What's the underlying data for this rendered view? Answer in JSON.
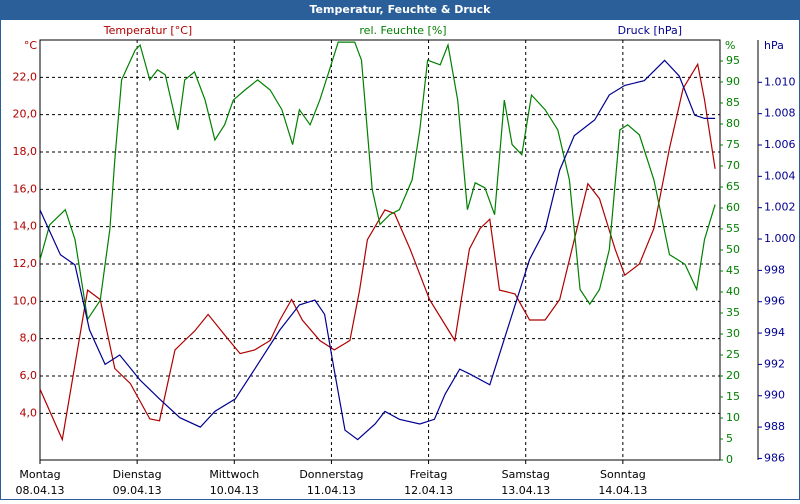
{
  "chart_data": {
    "type": "line",
    "title": "Temperatur, Feuchte & Druck",
    "xlim": [
      0,
      7
    ],
    "xticks": [
      {
        "value": 0,
        "label": "Montag"
      },
      {
        "value": 1,
        "label": "Dienstag"
      },
      {
        "value": 2,
        "label": "Mittwoch"
      },
      {
        "value": 3,
        "label": "Donnerstag"
      },
      {
        "value": 4,
        "label": "Freitag"
      },
      {
        "value": 5,
        "label": "Samstag"
      },
      {
        "value": 6,
        "label": "Sonntag"
      }
    ],
    "xtick_dates": [
      "08.04.13",
      "09.04.13",
      "10.04.13",
      "11.04.13",
      "12.04.13",
      "13.04.13",
      "14.04.13"
    ],
    "ylabel": "°C",
    "ylim": [
      1.5,
      24.0
    ],
    "yticks": [
      {
        "value": 4,
        "label": "4,0"
      },
      {
        "value": 6,
        "label": "6,0"
      },
      {
        "value": 8,
        "label": "8,0"
      },
      {
        "value": 10,
        "label": "10,0"
      },
      {
        "value": 12,
        "label": "12,0"
      },
      {
        "value": 14,
        "label": "14,0"
      },
      {
        "value": 16,
        "label": "16,0"
      },
      {
        "value": 18,
        "label": "18,0"
      },
      {
        "value": 20,
        "label": "20,0"
      },
      {
        "value": 22,
        "label": "22,0"
      }
    ],
    "y3label": "%",
    "y3lim": [
      0,
      100
    ],
    "y3ticks": [
      0,
      5,
      10,
      15,
      20,
      25,
      30,
      35,
      40,
      45,
      50,
      55,
      60,
      65,
      70,
      75,
      80,
      85,
      90,
      95
    ],
    "y2label": "hPa",
    "y2lim": [
      985.9,
      1012.7
    ],
    "y2ticks": [
      986,
      988,
      990,
      992,
      994,
      996,
      998,
      {
        "value": 1000,
        "label": "1.000"
      },
      {
        "value": 1002,
        "label": "1.002"
      },
      {
        "value": 1004,
        "label": "1.004"
      },
      {
        "value": 1006,
        "label": "1.006"
      },
      {
        "value": 1008,
        "label": "1.008"
      },
      {
        "value": 1010,
        "label": "1.010"
      }
    ],
    "grid": true,
    "series": [
      {
        "name": "Temperatur [°C]",
        "color": "#b00000",
        "axis": "y",
        "x": [
          0,
          0.23,
          0.49,
          0.62,
          0.77,
          0.93,
          1.13,
          1.23,
          1.39,
          1.49,
          1.59,
          1.73,
          1.9,
          2.06,
          2.21,
          2.37,
          2.47,
          2.59,
          2.7,
          2.88,
          3.03,
          3.19,
          3.29,
          3.37,
          3.55,
          3.65,
          3.81,
          4.01,
          4.27,
          4.42,
          4.53,
          4.63,
          4.73,
          4.89,
          5.04,
          5.2,
          5.35,
          5.5,
          5.64,
          5.76,
          5.92,
          6.02,
          6.17,
          6.32,
          6.48,
          6.62,
          6.77,
          6.84,
          6.95
        ],
        "values": [
          5.3,
          2.6,
          10.6,
          10.1,
          6.4,
          5.6,
          3.7,
          3.6,
          7.4,
          7.9,
          8.4,
          9.3,
          8.2,
          7.2,
          7.4,
          7.9,
          9.0,
          10.1,
          9.0,
          7.9,
          7.4,
          7.9,
          10.6,
          13.3,
          14.9,
          14.7,
          12.8,
          10.1,
          7.9,
          12.8,
          13.9,
          14.4,
          10.6,
          10.4,
          9.0,
          9.0,
          10.1,
          13.3,
          16.3,
          15.5,
          12.8,
          11.4,
          12.0,
          13.9,
          18.2,
          21.4,
          22.7,
          20.8,
          17.1
        ]
      },
      {
        "name": "rel. Feuchte [%]",
        "color": "#008000",
        "axis": "y3",
        "x": [
          0,
          0.1,
          0.26,
          0.36,
          0.49,
          0.62,
          0.72,
          0.77,
          0.84,
          0.98,
          1.03,
          1.13,
          1.21,
          1.29,
          1.42,
          1.49,
          1.59,
          1.7,
          1.8,
          1.9,
          1.99,
          2.11,
          2.24,
          2.37,
          2.49,
          2.6,
          2.67,
          2.78,
          2.88,
          2.98,
          3.07,
          3.24,
          3.31,
          3.42,
          3.5,
          3.6,
          3.7,
          3.83,
          3.91,
          3.99,
          4.12,
          4.2,
          4.3,
          4.4,
          4.48,
          4.58,
          4.68,
          4.78,
          4.86,
          4.96,
          5.06,
          5.2,
          5.33,
          5.45,
          5.56,
          5.66,
          5.76,
          5.86,
          5.97,
          6.05,
          6.17,
          6.32,
          6.48,
          6.64,
          6.76,
          6.84,
          6.95
        ],
        "values": [
          47.7,
          56,
          59.6,
          52.5,
          33.5,
          38,
          55,
          71.5,
          90.5,
          97.6,
          98.8,
          90.5,
          92.9,
          91.7,
          78.6,
          90.5,
          92.4,
          85.7,
          76.2,
          79.8,
          85.7,
          88.1,
          90.5,
          88.1,
          83.4,
          75.1,
          83.4,
          79.8,
          85.7,
          92.9,
          99.5,
          99.5,
          95.2,
          64.4,
          56.1,
          58.4,
          59.6,
          66.7,
          78.6,
          95.2,
          94.1,
          98.8,
          85.7,
          59.6,
          66,
          64.8,
          58.4,
          85.7,
          75.1,
          72.7,
          86.9,
          83.4,
          78.6,
          66.7,
          40.6,
          37.1,
          40.6,
          50.1,
          78.6,
          79.8,
          77.4,
          66.7,
          48.9,
          46.6,
          40.6,
          52.5,
          60.8
        ]
      },
      {
        "name": "Druck [hPa]",
        "color": "#000090",
        "axis": "y2",
        "x": [
          0,
          0.21,
          0.36,
          0.51,
          0.67,
          0.82,
          1.03,
          1.23,
          1.44,
          1.65,
          1.8,
          2.01,
          2.21,
          2.47,
          2.67,
          2.83,
          2.93,
          3.01,
          3.14,
          3.27,
          3.45,
          3.55,
          3.7,
          3.91,
          4.06,
          4.17,
          4.32,
          4.42,
          4.63,
          4.84,
          5.04,
          5.2,
          5.35,
          5.5,
          5.71,
          5.86,
          6.02,
          6.22,
          6.43,
          6.58,
          6.74,
          6.84,
          6.95
        ],
        "values": [
          1001.85,
          999.0,
          998.35,
          994.2,
          992.0,
          992.6,
          991.0,
          989.8,
          988.6,
          988.0,
          989.0,
          989.8,
          991.7,
          994.2,
          995.8,
          996.1,
          995.2,
          992.3,
          987.8,
          987.2,
          988.2,
          989.0,
          988.5,
          988.2,
          988.5,
          990.1,
          991.7,
          991.4,
          990.7,
          994.8,
          998.7,
          1000.6,
          1004.4,
          1006.6,
          1007.6,
          1009.2,
          1009.8,
          1010.1,
          1011.4,
          1010.4,
          1007.9,
          1007.7,
          1007.7
        ]
      }
    ]
  }
}
